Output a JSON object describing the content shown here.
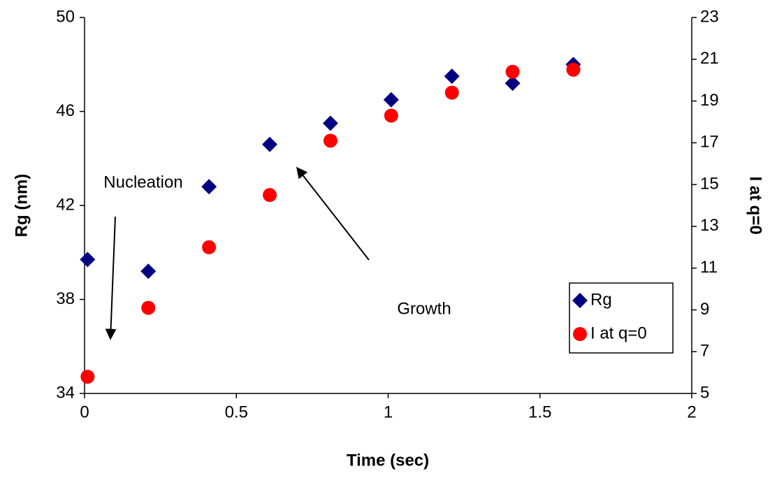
{
  "chart_data": {
    "type": "scatter",
    "xlabel": "Time (sec)",
    "ylabel": "Rg (nm)",
    "y2label": "I at q=0",
    "x": [
      0.01,
      0.21,
      0.41,
      0.61,
      0.81,
      1.01,
      1.21,
      1.41,
      1.61
    ],
    "series": [
      {
        "name": "Rg",
        "color": "#000080",
        "marker": "diamond",
        "values": [
          39.7,
          39.2,
          42.8,
          44.6,
          45.5,
          46.5,
          47.5,
          47.2,
          48.0
        ]
      },
      {
        "name": "I at q=0",
        "color": "#ff0000",
        "marker": "circle",
        "axis": "y2",
        "values": [
          5.8,
          9.1,
          12.0,
          14.5,
          17.1,
          18.3,
          19.4,
          20.4,
          20.5
        ]
      }
    ],
    "xlim": [
      0,
      2
    ],
    "xticks": [
      0,
      0.5,
      1,
      1.5,
      2
    ],
    "ylim": [
      34,
      50
    ],
    "yticks": [
      34,
      38,
      42,
      46,
      50
    ],
    "y2lim": [
      5,
      23
    ],
    "y2ticks": [
      5,
      7,
      9,
      11,
      13,
      15,
      17,
      19,
      21,
      23
    ],
    "grid": false,
    "legend": "lower right",
    "annotations": [
      "Nucleation",
      "Growth"
    ]
  }
}
